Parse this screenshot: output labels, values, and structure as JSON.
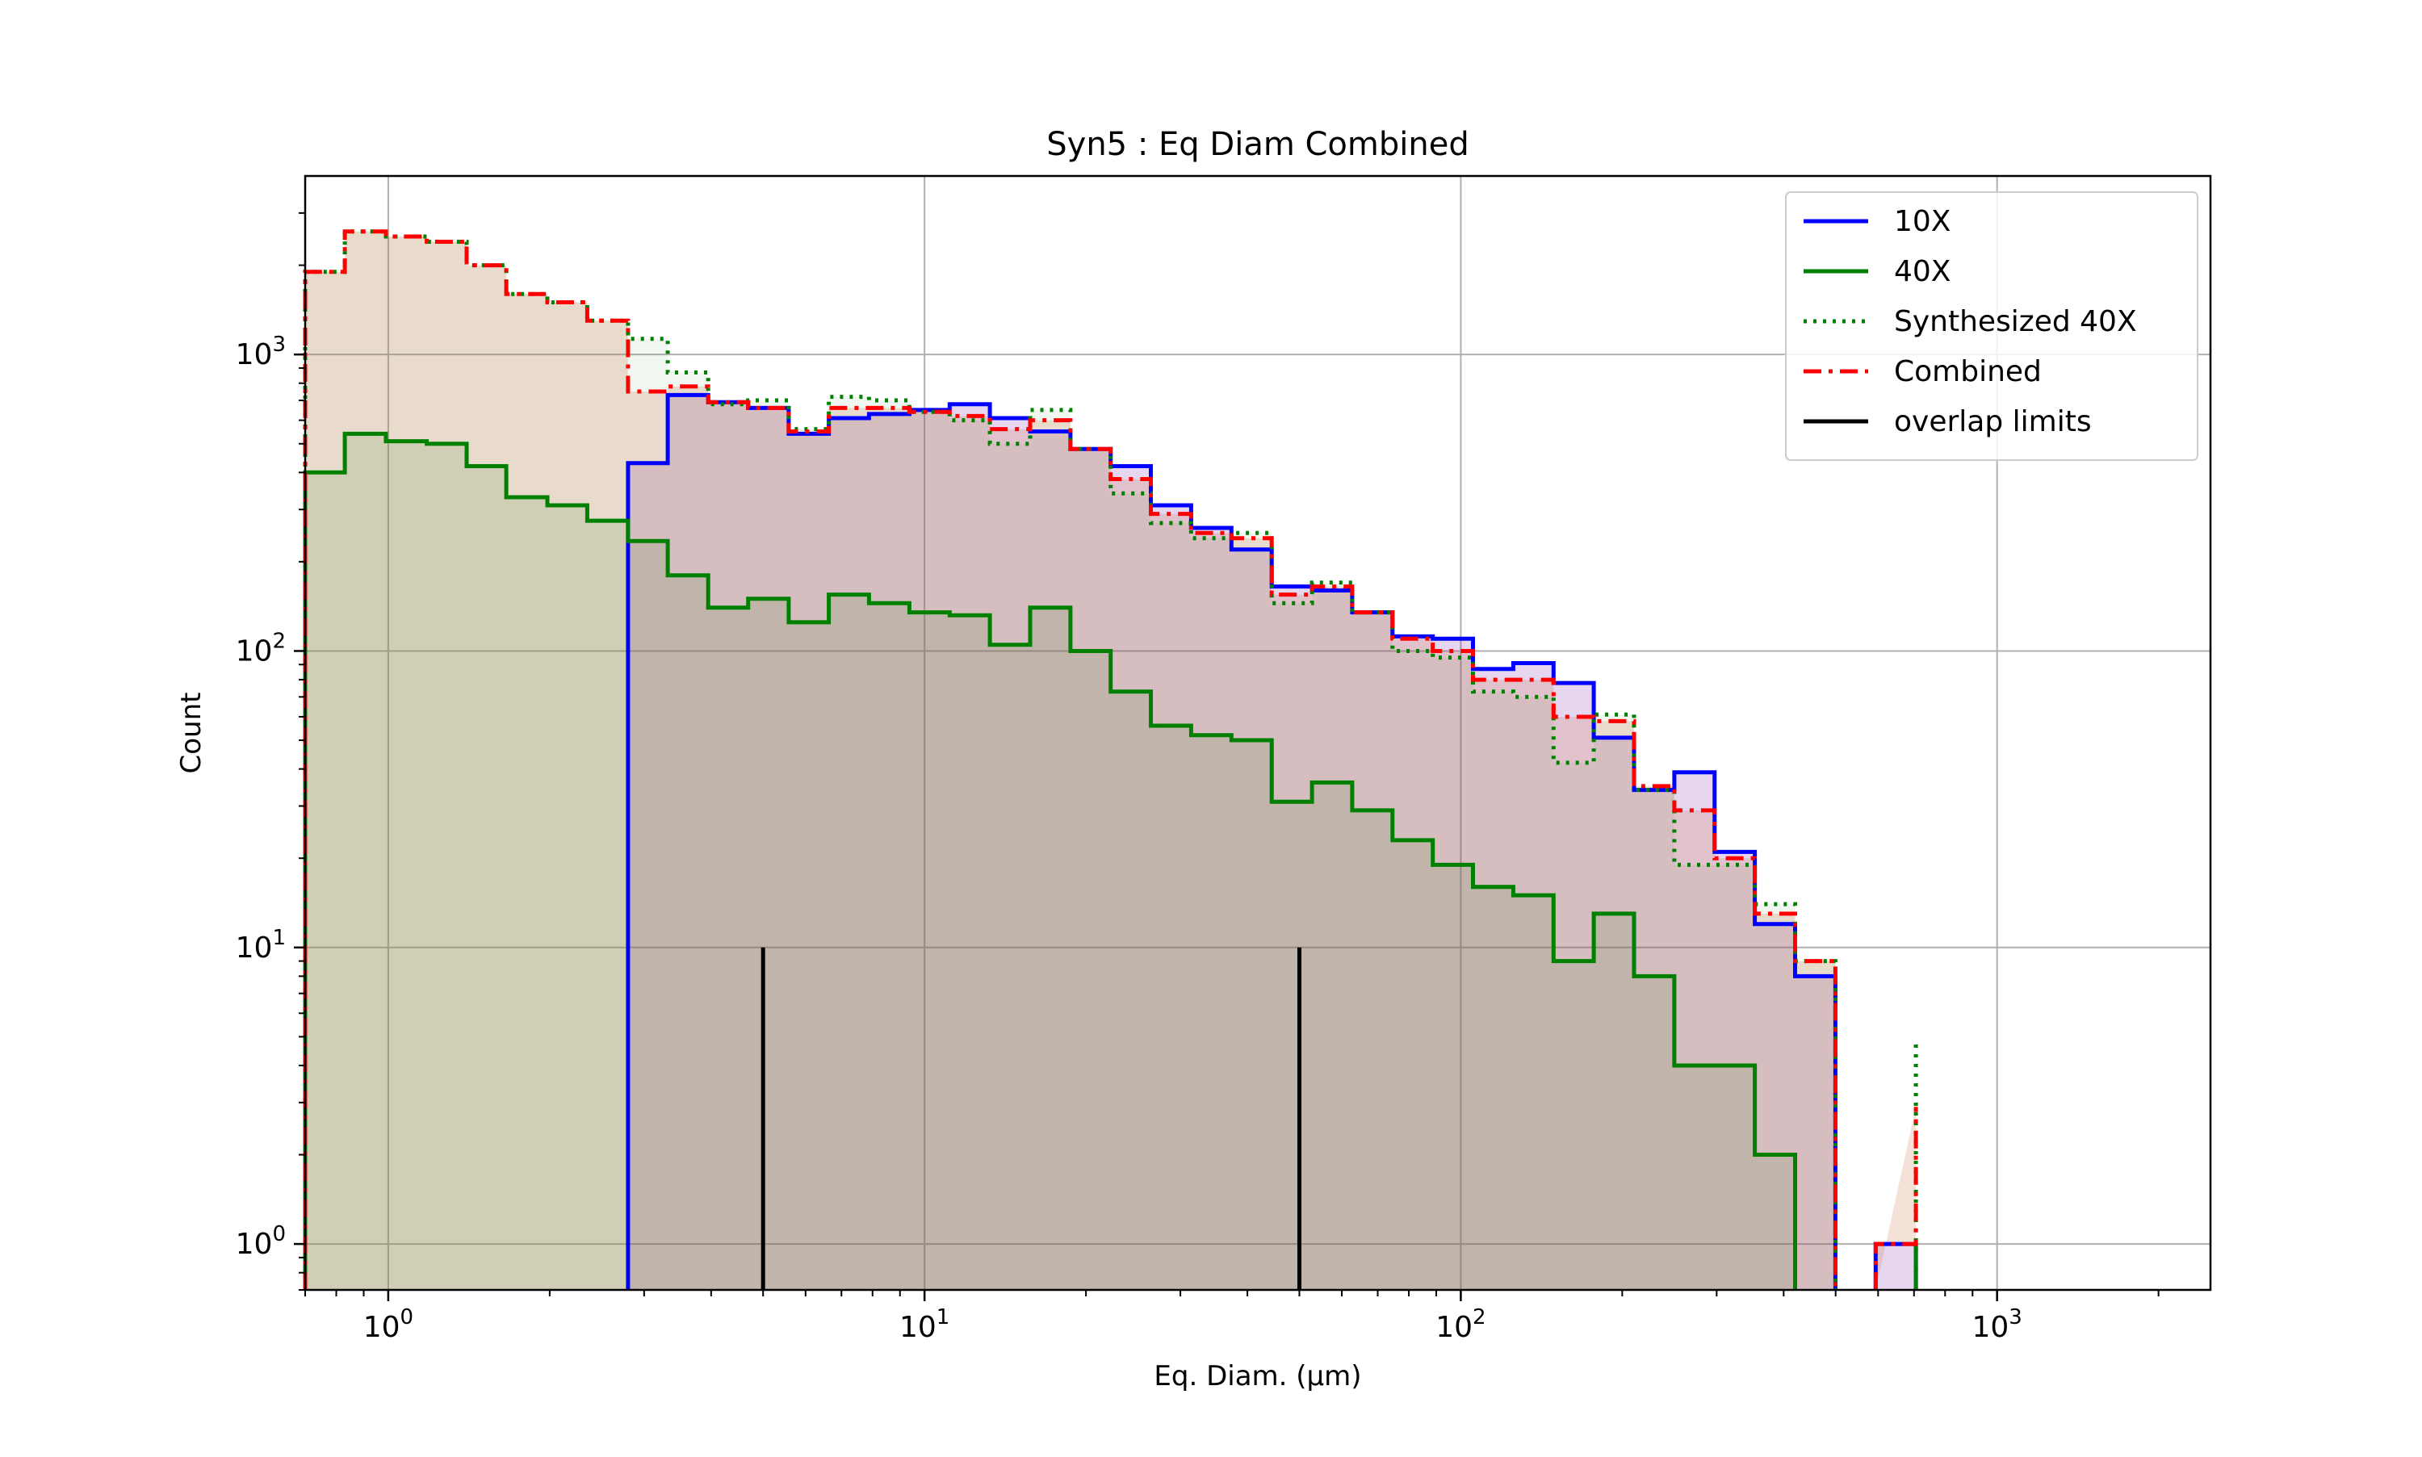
{
  "chart_data": {
    "type": "histogram-step",
    "title": "Syn5 : Eq Diam Combined",
    "xlabel": "Eq. Diam. (µm)",
    "ylabel": "Count",
    "xscale": "log",
    "yscale": "log",
    "xlim": [
      0.7,
      2500
    ],
    "ylim": [
      0.7,
      4000
    ],
    "grid": true,
    "legend_position": "top-right",
    "x_ticks": [
      {
        "value": 1,
        "base": "10",
        "exp": "0"
      },
      {
        "value": 10,
        "base": "10",
        "exp": "1"
      },
      {
        "value": 100,
        "base": "10",
        "exp": "2"
      },
      {
        "value": 1000,
        "base": "10",
        "exp": "3"
      }
    ],
    "y_ticks": [
      {
        "value": 1,
        "base": "10",
        "exp": "0"
      },
      {
        "value": 10,
        "base": "10",
        "exp": "1"
      },
      {
        "value": 100,
        "base": "10",
        "exp": "2"
      },
      {
        "value": 1000,
        "base": "10",
        "exp": "3"
      }
    ],
    "bin_edges": [
      0.7,
      0.83,
      0.99,
      1.18,
      1.4,
      1.66,
      1.98,
      2.35,
      2.8,
      3.32,
      3.95,
      4.69,
      5.58,
      6.63,
      7.88,
      9.37,
      11.14,
      13.24,
      15.74,
      18.71,
      22.24,
      26.43,
      31.42,
      37.35,
      44.4,
      52.78,
      62.74,
      74.58,
      88.65,
      105.38,
      125.27,
      148.91,
      177.01,
      210.42,
      250.13,
      297.34,
      353.45,
      420.16,
      499.45,
      593.7,
      705.74
    ],
    "series": [
      {
        "name": "10X",
        "color": "#0000ff",
        "fill": "rgba(100,0,160,0.16)",
        "line_style": "solid",
        "values": [
          0,
          0,
          0,
          0,
          0,
          0,
          0,
          0,
          430,
          730,
          690,
          660,
          540,
          610,
          630,
          650,
          680,
          610,
          550,
          480,
          420,
          310,
          260,
          220,
          165,
          160,
          135,
          112,
          110,
          87,
          91,
          78,
          51,
          34,
          39,
          21,
          12,
          8,
          0,
          1,
          0
        ]
      },
      {
        "name": "40X",
        "color": "#008000",
        "fill": "rgba(60,150,60,0.16)",
        "line_style": "solid",
        "values": [
          400,
          540,
          510,
          500,
          420,
          330,
          310,
          275,
          235,
          180,
          140,
          150,
          125,
          155,
          145,
          135,
          132,
          105,
          140,
          100,
          73,
          56,
          52,
          50,
          31,
          36,
          29,
          23,
          19,
          16,
          15,
          9,
          13,
          8,
          4,
          4,
          2,
          0,
          0,
          0,
          1
        ]
      },
      {
        "name": "Synthesized 40X",
        "color": "#008000",
        "fill": "rgba(60,150,60,0.08)",
        "line_style": "dotted",
        "values": [
          1900,
          2600,
          2500,
          2400,
          2000,
          1600,
          1500,
          1300,
          1130,
          870,
          680,
          700,
          560,
          720,
          700,
          640,
          600,
          500,
          650,
          480,
          340,
          270,
          240,
          250,
          145,
          170,
          135,
          100,
          95,
          73,
          70,
          42,
          61,
          34,
          19,
          19,
          14,
          9,
          0,
          0,
          4.8
        ]
      },
      {
        "name": "Combined",
        "color": "#ff0000",
        "fill": "rgba(200,110,60,0.20)",
        "line_style": "dashdot",
        "values": [
          1900,
          2600,
          2500,
          2400,
          2000,
          1600,
          1500,
          1300,
          750,
          780,
          690,
          660,
          550,
          660,
          660,
          640,
          620,
          560,
          600,
          480,
          380,
          290,
          250,
          240,
          155,
          165,
          135,
          110,
          100,
          80,
          80,
          60,
          58,
          35,
          29,
          20,
          13,
          9,
          0,
          1,
          2.9
        ]
      },
      {
        "name": "overlap limits",
        "color": "#000000",
        "line_style": "solid",
        "vertical_lines": [
          {
            "x": 5,
            "y_from": 0.7,
            "y_to": 10
          },
          {
            "x": 50,
            "y_from": 0.7,
            "y_to": 10
          }
        ]
      }
    ]
  }
}
